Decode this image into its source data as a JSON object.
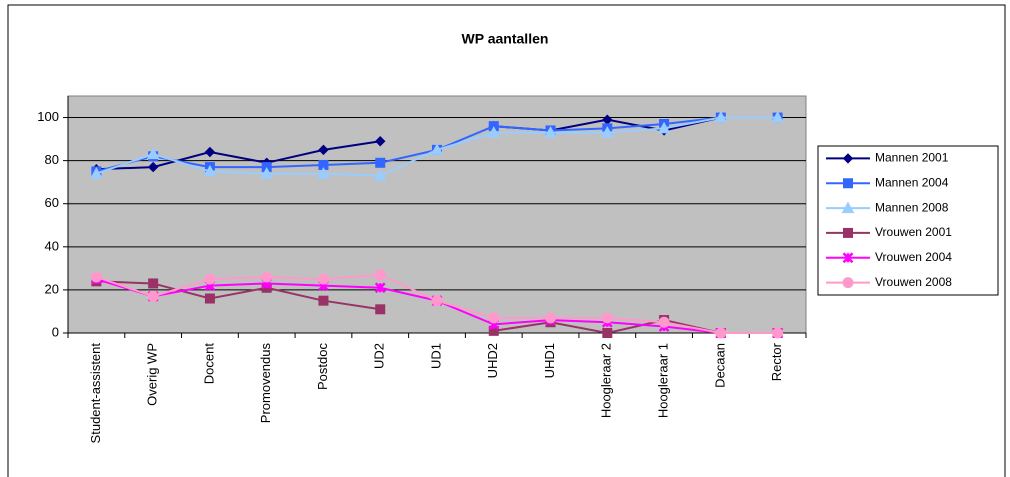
{
  "chart_data": {
    "type": "line",
    "title": "WP aantallen",
    "categories": [
      "Student-assistent",
      "Overig WP",
      "Docent",
      "Promovendus",
      "Postdoc",
      "UD2",
      "UD1",
      "UHD2",
      "UHD1",
      "Hoogleraar 2",
      "Hoogleraar 1",
      "Decaan",
      "Rector"
    ],
    "series": [
      {
        "name": "Mannen 2001",
        "color": "#000080",
        "marker": "diamond",
        "values": [
          76,
          77,
          84,
          79,
          85,
          89,
          null,
          96,
          94,
          99,
          94,
          100,
          100
        ]
      },
      {
        "name": "Mannen 2004",
        "color": "#3366ff",
        "marker": "square",
        "values": [
          75,
          82,
          77,
          77,
          78,
          79,
          85,
          96,
          94,
          95,
          97,
          100,
          100
        ]
      },
      {
        "name": "Mannen 2008",
        "color": "#99ccff",
        "marker": "triangle",
        "values": [
          74,
          83,
          75,
          74,
          74,
          73,
          85,
          93,
          93,
          93,
          95,
          100,
          100
        ]
      },
      {
        "name": "Vrouwen 2001",
        "color": "#993366",
        "marker": "square",
        "values": [
          24,
          23,
          16,
          21,
          15,
          11,
          null,
          1,
          5,
          0,
          6,
          0,
          0
        ]
      },
      {
        "name": "Vrouwen 2004",
        "color": "#ff00ff",
        "marker": "star",
        "values": [
          25,
          17,
          22,
          23,
          22,
          21,
          15,
          4,
          6,
          5,
          3,
          0,
          0
        ]
      },
      {
        "name": "Vrouwen 2008",
        "color": "#ff99cc",
        "marker": "circle",
        "values": [
          26,
          17,
          25,
          26,
          25,
          27,
          15,
          7,
          7,
          7,
          5,
          0,
          0
        ]
      }
    ],
    "ylim": [
      0,
      110
    ],
    "yticks": [
      0,
      20,
      40,
      60,
      80,
      100
    ],
    "grid": true,
    "legend": "right",
    "plot_background": "#c0c0c0"
  }
}
